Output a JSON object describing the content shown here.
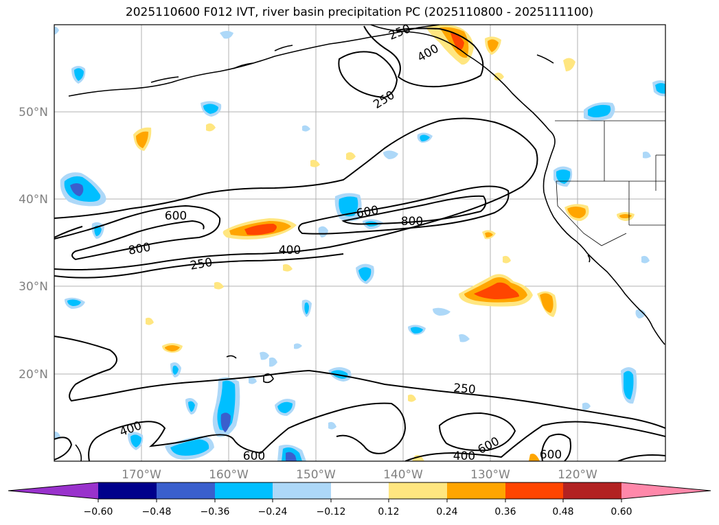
{
  "title": "2025110600 F012 IVT, river basin precipitation PC (2025110800 - 2025111100)",
  "map": {
    "lat_labels": [
      "50°N",
      "40°N",
      "30°N",
      "20°N"
    ],
    "lon_labels": [
      "170°W",
      "160°W",
      "150°W",
      "140°W",
      "130°W",
      "120°W"
    ],
    "contour_labels": {
      "c250_nw": "250",
      "c250_inner": "250",
      "c400_n": "400",
      "c600_w": "600",
      "c800_w": "800",
      "c250_w": "250",
      "c400_mid": "400",
      "c600_c": "600",
      "c800_c": "800",
      "c250_s": "250",
      "c400_sw": "400",
      "c600_s": "600",
      "c400_se": "400",
      "c600_se": "600",
      "c600_e": "600"
    }
  },
  "colorbar": {
    "ticks": [
      "−0.60",
      "−0.48",
      "−0.36",
      "−0.24",
      "−0.12",
      "0.12",
      "0.24",
      "0.36",
      "0.48",
      "0.60"
    ],
    "colors": {
      "lt_neg": "#9932cc",
      "neg060": "#00008b",
      "neg048": "#3a5fcd",
      "neg036": "#00bfff",
      "neg024": "#add8f8",
      "neutral": "#ffffff",
      "pos012": "#ffe680",
      "pos024": "#ffa500",
      "pos036": "#ff4500",
      "pos048": "#b22222",
      "gt_pos": "#ff88aa"
    }
  }
}
